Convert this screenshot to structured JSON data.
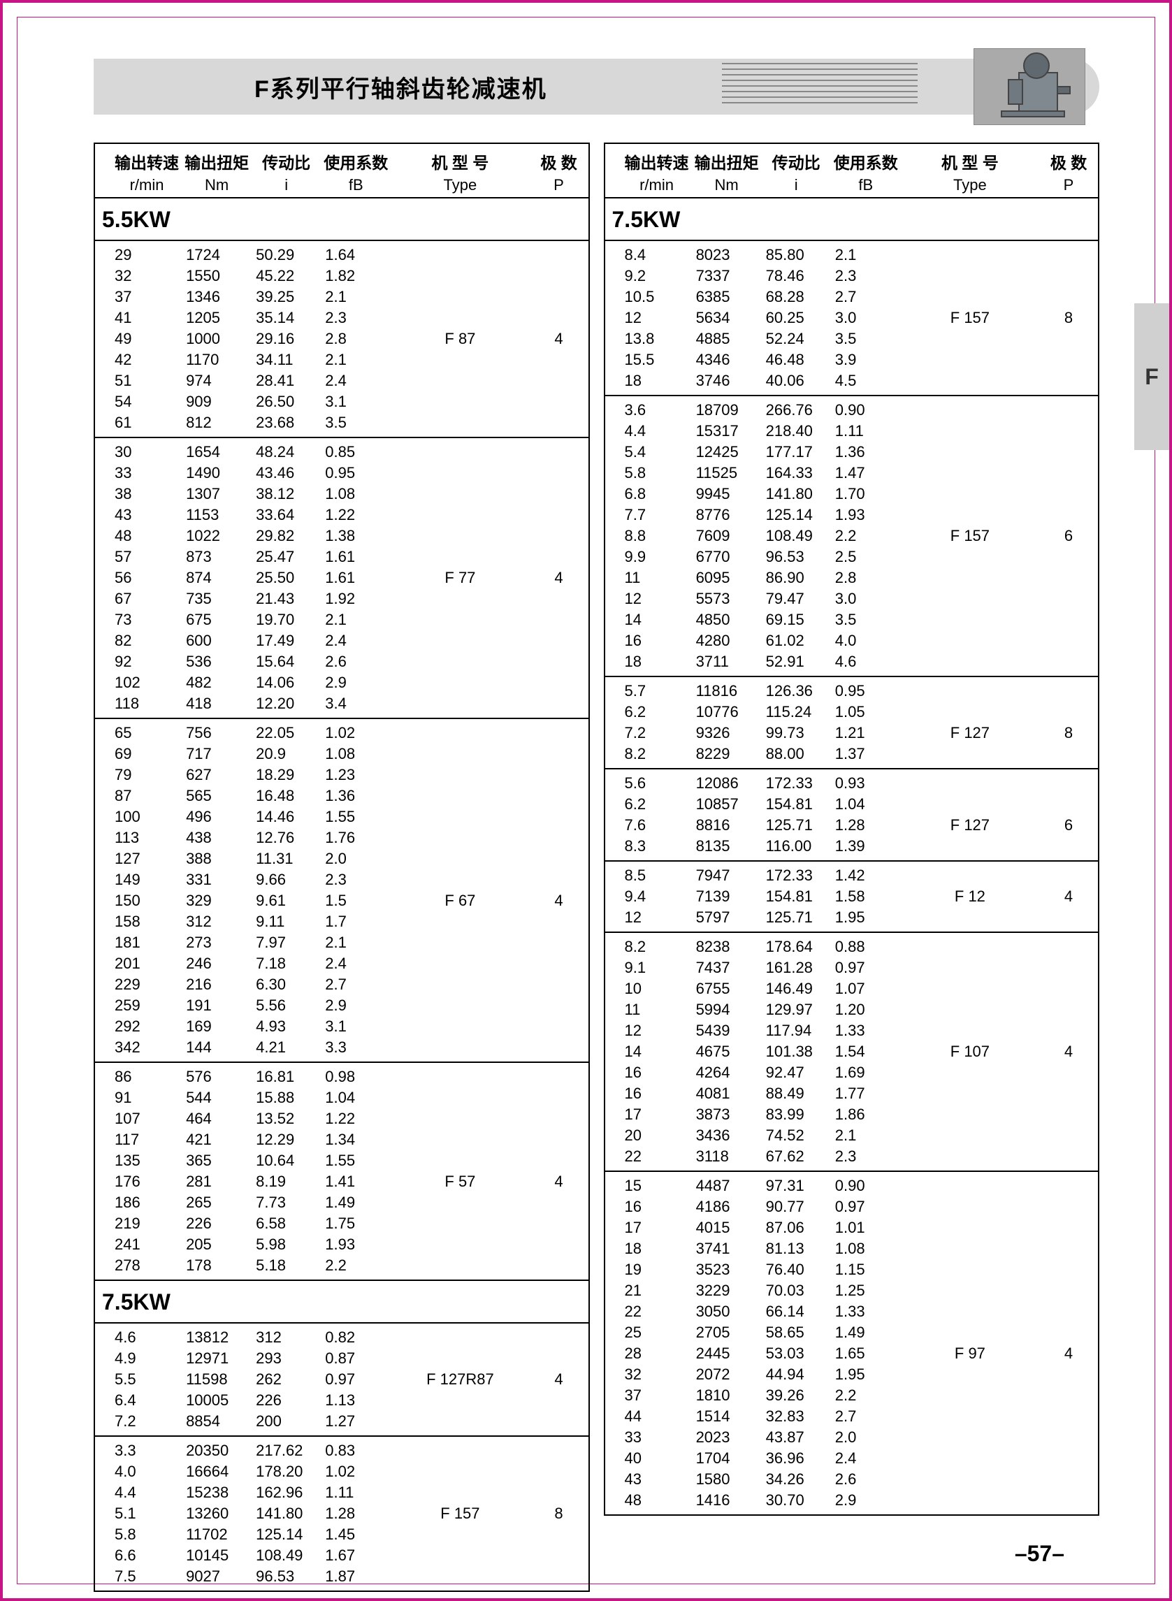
{
  "page_title": "F系列平行轴斜齿轮减速机",
  "side_tab": "F",
  "page_number": "–57–",
  "headers": {
    "h1": "输出转速",
    "h1s": "r/min",
    "h2": "输出扭矩",
    "h2s": "Nm",
    "h3": "传动比",
    "h3s": "i",
    "h4": "使用系数",
    "h4s": "fB",
    "h5": "机 型 号",
    "h5s": "Type",
    "h6": "极  数",
    "h6s": "P"
  },
  "left": [
    {
      "kw": "5.5KW",
      "groups": [
        {
          "type": "F   87",
          "p": "4",
          "rows": [
            [
              "29",
              "1724",
              "50.29",
              "1.64"
            ],
            [
              "32",
              "1550",
              "45.22",
              "1.82"
            ],
            [
              "37",
              "1346",
              "39.25",
              "2.1"
            ],
            [
              "41",
              "1205",
              "35.14",
              "2.3"
            ],
            [
              "49",
              "1000",
              "29.16",
              "2.8"
            ],
            [
              "42",
              "1170",
              "34.11",
              "2.1"
            ],
            [
              "51",
              "974",
              "28.41",
              "2.4"
            ],
            [
              "54",
              "909",
              "26.50",
              "3.1"
            ],
            [
              "61",
              "812",
              "23.68",
              "3.5"
            ]
          ]
        },
        {
          "type": "F   77",
          "p": "4",
          "rows": [
            [
              "30",
              "1654",
              "48.24",
              "0.85"
            ],
            [
              "33",
              "1490",
              "43.46",
              "0.95"
            ],
            [
              "38",
              "1307",
              "38.12",
              "1.08"
            ],
            [
              "43",
              "1153",
              "33.64",
              "1.22"
            ],
            [
              "48",
              "1022",
              "29.82",
              "1.38"
            ],
            [
              "57",
              "873",
              "25.47",
              "1.61"
            ],
            [
              "56",
              "874",
              "25.50",
              "1.61"
            ],
            [
              "67",
              "735",
              "21.43",
              "1.92"
            ],
            [
              "73",
              "675",
              "19.70",
              "2.1"
            ],
            [
              "82",
              "600",
              "17.49",
              "2.4"
            ],
            [
              "92",
              "536",
              "15.64",
              "2.6"
            ],
            [
              "102",
              "482",
              "14.06",
              "2.9"
            ],
            [
              "118",
              "418",
              "12.20",
              "3.4"
            ]
          ]
        },
        {
          "type": "F   67",
          "p": "4",
          "rows": [
            [
              "65",
              "756",
              "22.05",
              "1.02"
            ],
            [
              "69",
              "717",
              "20.9",
              "1.08"
            ],
            [
              "79",
              "627",
              "18.29",
              "1.23"
            ],
            [
              "87",
              "565",
              "16.48",
              "1.36"
            ],
            [
              "100",
              "496",
              "14.46",
              "1.55"
            ],
            [
              "113",
              "438",
              "12.76",
              "1.76"
            ],
            [
              "127",
              "388",
              "11.31",
              "2.0"
            ],
            [
              "149",
              "331",
              "9.66",
              "2.3"
            ],
            [
              "150",
              "329",
              "9.61",
              "1.5"
            ],
            [
              "158",
              "312",
              "9.11",
              "1.7"
            ],
            [
              "181",
              "273",
              "7.97",
              "2.1"
            ],
            [
              "201",
              "246",
              "7.18",
              "2.4"
            ],
            [
              "229",
              "216",
              "6.30",
              "2.7"
            ],
            [
              "259",
              "191",
              "5.56",
              "2.9"
            ],
            [
              "292",
              "169",
              "4.93",
              "3.1"
            ],
            [
              "342",
              "144",
              "4.21",
              "3.3"
            ]
          ]
        },
        {
          "type": "F   57",
          "p": "4",
          "rows": [
            [
              "86",
              "576",
              "16.81",
              "0.98"
            ],
            [
              "91",
              "544",
              "15.88",
              "1.04"
            ],
            [
              "107",
              "464",
              "13.52",
              "1.22"
            ],
            [
              "117",
              "421",
              "12.29",
              "1.34"
            ],
            [
              "135",
              "365",
              "10.64",
              "1.55"
            ],
            [
              "176",
              "281",
              "8.19",
              "1.41"
            ],
            [
              "186",
              "265",
              "7.73",
              "1.49"
            ],
            [
              "219",
              "226",
              "6.58",
              "1.75"
            ],
            [
              "241",
              "205",
              "5.98",
              "1.93"
            ],
            [
              "278",
              "178",
              "5.18",
              "2.2"
            ]
          ]
        }
      ]
    },
    {
      "kw": "7.5KW",
      "groups": [
        {
          "type": "F   127R87",
          "p": "4",
          "rows": [
            [
              "4.6",
              "13812",
              "312",
              "0.82"
            ],
            [
              "4.9",
              "12971",
              "293",
              "0.87"
            ],
            [
              "5.5",
              "11598",
              "262",
              "0.97"
            ],
            [
              "6.4",
              "10005",
              "226",
              "1.13"
            ],
            [
              "7.2",
              "8854",
              "200",
              "1.27"
            ]
          ]
        },
        {
          "type": "F   157",
          "p": "8",
          "rows": [
            [
              "3.3",
              "20350",
              "217.62",
              "0.83"
            ],
            [
              "4.0",
              "16664",
              "178.20",
              "1.02"
            ],
            [
              "4.4",
              "15238",
              "162.96",
              "1.11"
            ],
            [
              "5.1",
              "13260",
              "141.80",
              "1.28"
            ],
            [
              "5.8",
              "11702",
              "125.14",
              "1.45"
            ],
            [
              "6.6",
              "10145",
              "108.49",
              "1.67"
            ],
            [
              "7.5",
              "9027",
              "96.53",
              "1.87"
            ]
          ]
        }
      ]
    }
  ],
  "right": [
    {
      "kw": "7.5KW",
      "groups": [
        {
          "type": "F   157",
          "p": "8",
          "rows": [
            [
              "8.4",
              "8023",
              "85.80",
              "2.1"
            ],
            [
              "9.2",
              "7337",
              "78.46",
              "2.3"
            ],
            [
              "10.5",
              "6385",
              "68.28",
              "2.7"
            ],
            [
              "12",
              "5634",
              "60.25",
              "3.0"
            ],
            [
              "13.8",
              "4885",
              "52.24",
              "3.5"
            ],
            [
              "15.5",
              "4346",
              "46.48",
              "3.9"
            ],
            [
              "18",
              "3746",
              "40.06",
              "4.5"
            ]
          ]
        },
        {
          "type": "F   157",
          "p": "6",
          "rows": [
            [
              "3.6",
              "18709",
              "266.76",
              "0.90"
            ],
            [
              "4.4",
              "15317",
              "218.40",
              "1.11"
            ],
            [
              "5.4",
              "12425",
              "177.17",
              "1.36"
            ],
            [
              "5.8",
              "11525",
              "164.33",
              "1.47"
            ],
            [
              "6.8",
              "9945",
              "141.80",
              "1.70"
            ],
            [
              "7.7",
              "8776",
              "125.14",
              "1.93"
            ],
            [
              "8.8",
              "7609",
              "108.49",
              "2.2"
            ],
            [
              "9.9",
              "6770",
              "96.53",
              "2.5"
            ],
            [
              "11",
              "6095",
              "86.90",
              "2.8"
            ],
            [
              "12",
              "5573",
              "79.47",
              "3.0"
            ],
            [
              "14",
              "4850",
              "69.15",
              "3.5"
            ],
            [
              "16",
              "4280",
              "61.02",
              "4.0"
            ],
            [
              "18",
              "3711",
              "52.91",
              "4.6"
            ]
          ]
        },
        {
          "type": "F   127",
          "p": "8",
          "rows": [
            [
              "5.7",
              "11816",
              "126.36",
              "0.95"
            ],
            [
              "6.2",
              "10776",
              "115.24",
              "1.05"
            ],
            [
              "7.2",
              "9326",
              "99.73",
              "1.21"
            ],
            [
              "8.2",
              "8229",
              "88.00",
              "1.37"
            ]
          ]
        },
        {
          "type": "F   127",
          "p": "6",
          "rows": [
            [
              "5.6",
              "12086",
              "172.33",
              "0.93"
            ],
            [
              "6.2",
              "10857",
              "154.81",
              "1.04"
            ],
            [
              "7.6",
              "8816",
              "125.71",
              "1.28"
            ],
            [
              "8.3",
              "8135",
              "116.00",
              "1.39"
            ]
          ]
        },
        {
          "type": "F   12",
          "p": "4",
          "rows": [
            [
              "8.5",
              "7947",
              "172.33",
              "1.42"
            ],
            [
              "9.4",
              "7139",
              "154.81",
              "1.58"
            ],
            [
              "12",
              "5797",
              "125.71",
              "1.95"
            ]
          ]
        },
        {
          "type": "F   107",
          "p": "4",
          "rows": [
            [
              "8.2",
              "8238",
              "178.64",
              "0.88"
            ],
            [
              "9.1",
              "7437",
              "161.28",
              "0.97"
            ],
            [
              "10",
              "6755",
              "146.49",
              "1.07"
            ],
            [
              "11",
              "5994",
              "129.97",
              "1.20"
            ],
            [
              "12",
              "5439",
              "117.94",
              "1.33"
            ],
            [
              "14",
              "4675",
              "101.38",
              "1.54"
            ],
            [
              "16",
              "4264",
              "92.47",
              "1.69"
            ],
            [
              "16",
              "4081",
              "88.49",
              "1.77"
            ],
            [
              "17",
              "3873",
              "83.99",
              "1.86"
            ],
            [
              "20",
              "3436",
              "74.52",
              "2.1"
            ],
            [
              "22",
              "3118",
              "67.62",
              "2.3"
            ]
          ]
        },
        {
          "type": "F   97",
          "p": "4",
          "rows": [
            [
              "15",
              "4487",
              "97.31",
              "0.90"
            ],
            [
              "16",
              "4186",
              "90.77",
              "0.97"
            ],
            [
              "17",
              "4015",
              "87.06",
              "1.01"
            ],
            [
              "18",
              "3741",
              "81.13",
              "1.08"
            ],
            [
              "19",
              "3523",
              "76.40",
              "1.15"
            ],
            [
              "21",
              "3229",
              "70.03",
              "1.25"
            ],
            [
              "22",
              "3050",
              "66.14",
              "1.33"
            ],
            [
              "25",
              "2705",
              "58.65",
              "1.49"
            ],
            [
              "28",
              "2445",
              "53.03",
              "1.65"
            ],
            [
              "32",
              "2072",
              "44.94",
              "1.95"
            ],
            [
              "37",
              "1810",
              "39.26",
              "2.2"
            ],
            [
              "44",
              "1514",
              "32.83",
              "2.7"
            ],
            [
              "33",
              "2023",
              "43.87",
              "2.0"
            ],
            [
              "40",
              "1704",
              "36.96",
              "2.4"
            ],
            [
              "43",
              "1580",
              "34.26",
              "2.6"
            ],
            [
              "48",
              "1416",
              "30.70",
              "2.9"
            ]
          ]
        }
      ]
    }
  ]
}
